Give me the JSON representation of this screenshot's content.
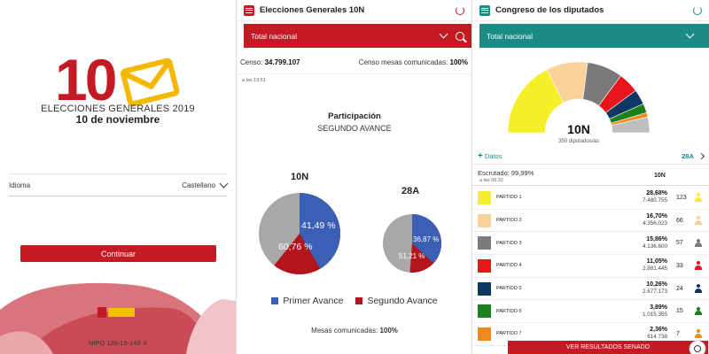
{
  "welcome": {
    "logo_number": "10",
    "title": "ELECCIONES GENERALES 2019",
    "date": "10 de noviembre",
    "language_label": "Idioma",
    "language_value": "Castellano",
    "continue_label": "Continuar",
    "nipo": "NIPO 126-19-142-X",
    "colors": {
      "brand_red": "#c41a24",
      "envelope_yellow": "#f5b800"
    }
  },
  "participation": {
    "app_title": "Elecciones Generales 10N",
    "filter_label": "Total nacional",
    "censo_label": "Censo:",
    "censo_value": "34.799.107",
    "censo_mesas_label": "Censo mesas comunicadas:",
    "censo_mesas_value": "100%",
    "time": "a las 19:51",
    "title": "Participación",
    "subtitle": "SEGUNDO AVANCE",
    "mesas_label": "Mesas comunicadas:",
    "mesas_value": "100%",
    "colors": {
      "header_red": "#c41a24",
      "first": "#3a5fb5",
      "second": "#b3151d",
      "rest": "#a8a8a8"
    }
  },
  "chart_data": {
    "type": "pie",
    "series": [
      {
        "name": "10N",
        "labels": [
          "Primer Avance",
          "Segundo Avance"
        ],
        "values": [
          41.49,
          60.76
        ],
        "value_labels": [
          "41,49 %",
          "60,76 %"
        ]
      },
      {
        "name": "28A",
        "labels": [
          "Primer Avance",
          "Segundo Avance"
        ],
        "values": [
          36.87,
          51.21
        ],
        "value_labels": [
          "36,87 %",
          "51,21 %"
        ]
      }
    ],
    "legend": [
      "Primer Avance",
      "Segundo Avance"
    ],
    "legend_position": "bottom"
  },
  "congress": {
    "app_title": "Congreso de los diputados",
    "filter_label": "Total nacional",
    "seats_label": "10N",
    "seats_sub": "350 diputados/as",
    "datos_label": "Datos",
    "datos_year": "28A",
    "escrutado": "Escrutado: 99,99%",
    "time": "a las 06:32",
    "column_label": "10N",
    "senado_label": "VER RESULTADOS SENADO",
    "colors": {
      "header_teal": "#1a8b85"
    },
    "parties": [
      {
        "name": "PARTIDO 1",
        "pct": "28,68%",
        "votes": "7.480.755",
        "seats": "123",
        "color": "#f5ef2a"
      },
      {
        "name": "PARTIDO 2",
        "pct": "16,70%",
        "votes": "4.356.023",
        "seats": "66",
        "color": "#f8d29a"
      },
      {
        "name": "PARTIDO 3",
        "pct": "15,86%",
        "votes": "4.136.600",
        "seats": "57",
        "color": "#7a7a7a"
      },
      {
        "name": "PARTIDO 4",
        "pct": "11,05%",
        "votes": "2.881.445",
        "seats": "33",
        "color": "#e8151a"
      },
      {
        "name": "PARTIDO 5",
        "pct": "10,26%",
        "votes": "2.677.173",
        "seats": "24",
        "color": "#0f3763"
      },
      {
        "name": "PARTIDO 6",
        "pct": "3,89%",
        "votes": "1.015.355",
        "seats": "15",
        "color": "#1d7f1d"
      },
      {
        "name": "PARTIDO 7",
        "pct": "2,36%",
        "votes": "614.738",
        "seats": "7",
        "color": "#f08a1c"
      }
    ]
  }
}
